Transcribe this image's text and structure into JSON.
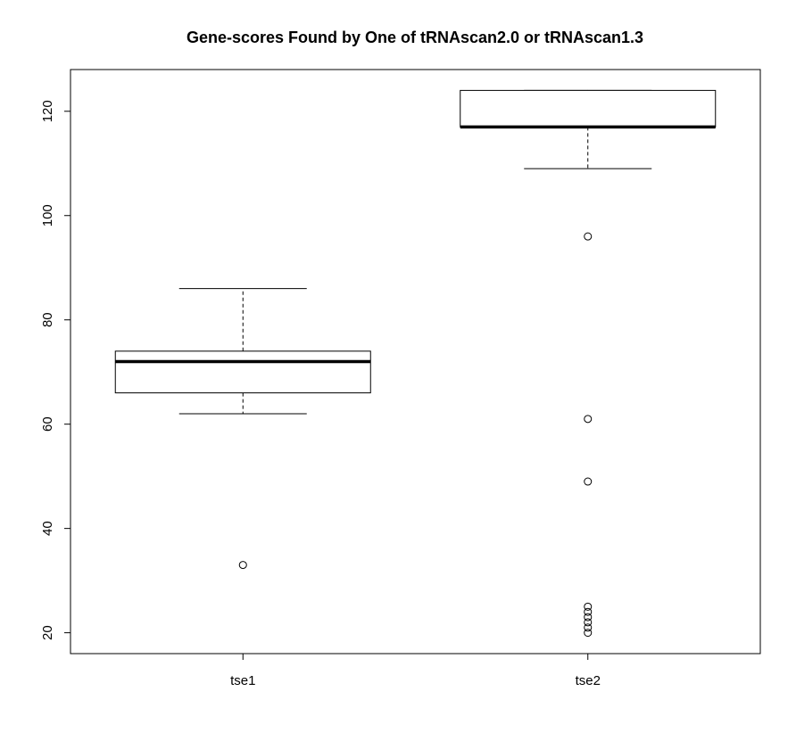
{
  "chart_data": {
    "type": "boxplot",
    "title": "Gene-scores Found by One of tRNAscan2.0 or tRNAscan1.3",
    "xlabel": "",
    "ylabel": "",
    "categories": [
      "tse1",
      "tse2"
    ],
    "ylim": [
      16,
      128
    ],
    "yticks": [
      20,
      40,
      60,
      80,
      100,
      120
    ],
    "grid": false,
    "boxes": [
      {
        "name": "tse1",
        "whisker_low": 62,
        "q1": 66,
        "median": 72,
        "q3": 74,
        "whisker_high": 86,
        "outliers": [
          33
        ]
      },
      {
        "name": "tse2",
        "whisker_low": 109,
        "q1": 117,
        "median": 117,
        "q3": 124,
        "whisker_high": 124,
        "outliers": [
          96,
          61,
          49,
          25,
          24,
          23,
          22,
          21,
          20
        ]
      }
    ]
  }
}
